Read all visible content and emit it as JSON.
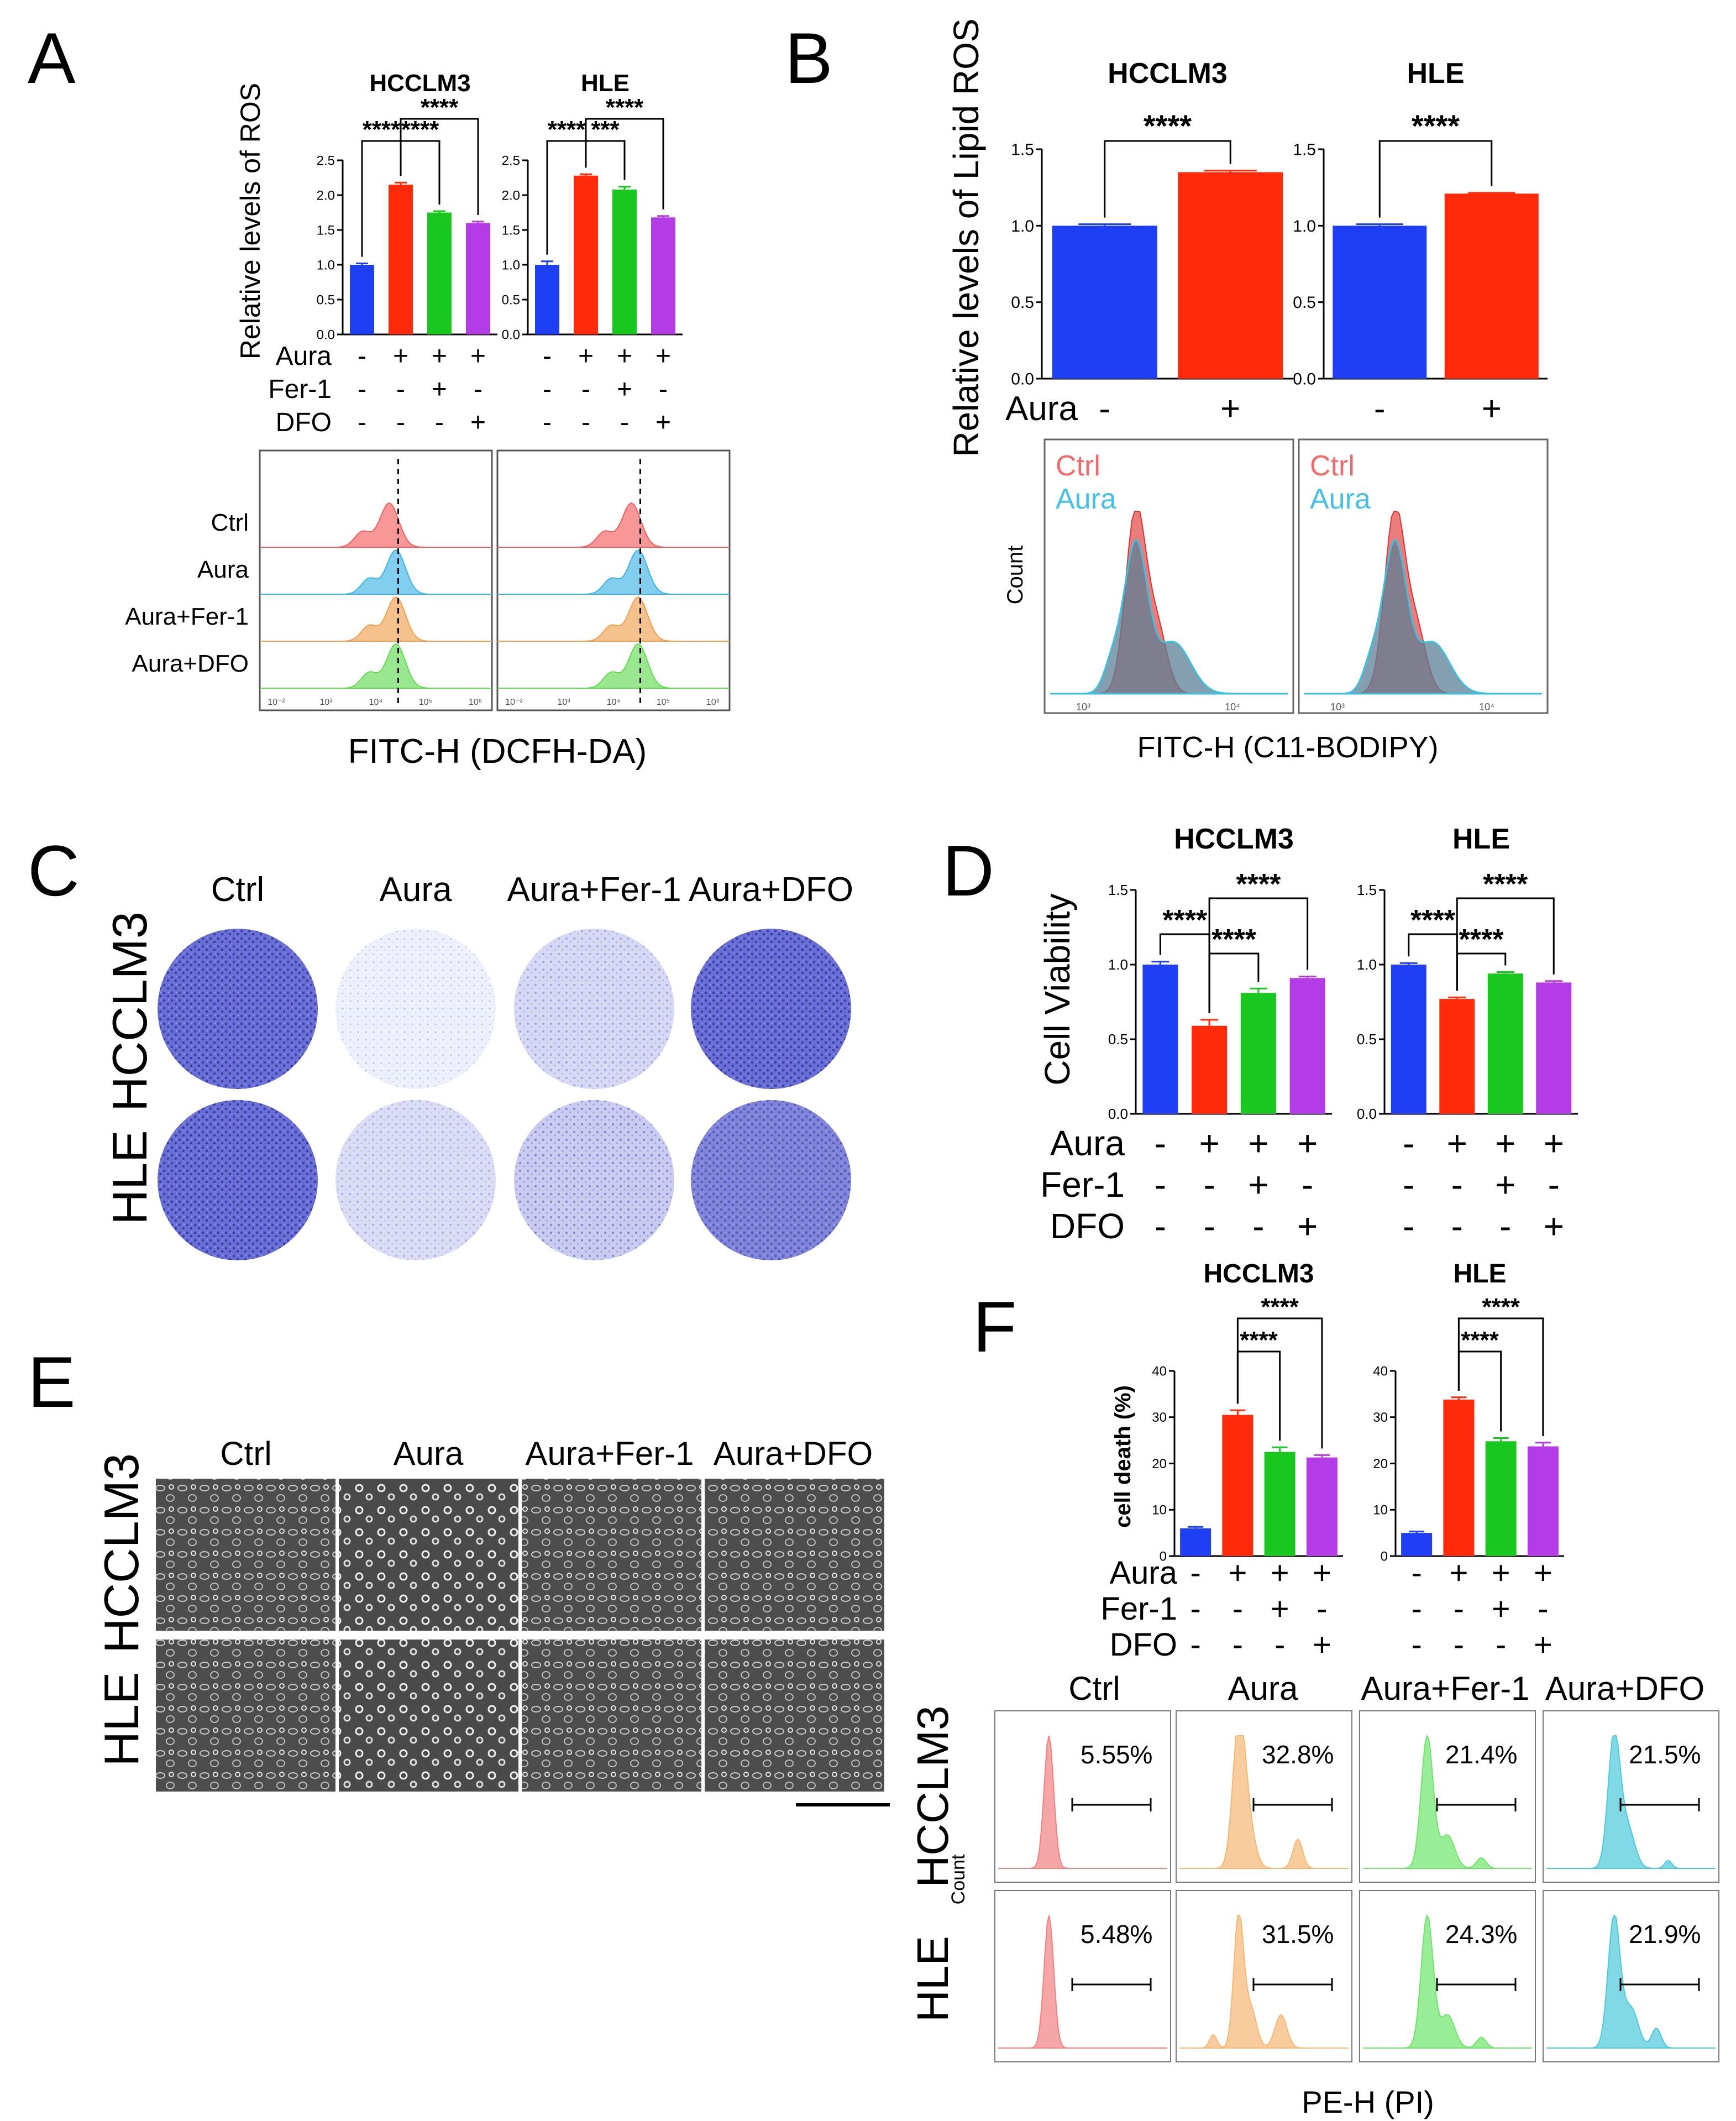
{
  "colors": {
    "ctrl": "#1f3ff5",
    "aura": "#ff2a0a",
    "fer1": "#19c81e",
    "dfo": "#b43ce6",
    "hist_ctrl": "#f25f5f",
    "hist_aura": "#3fb4e6",
    "hist_fer1": "#f0a050",
    "hist_dfo": "#63dc53",
    "hist_cyan": "#33c3d8",
    "dish": "#4a4fbf",
    "brightfield": "#5a5a5a"
  },
  "panels": {
    "A": "A",
    "B": "B",
    "C": "C",
    "D": "D",
    "E": "E",
    "F": "F"
  },
  "conditions": {
    "ctrl": "Ctrl",
    "aura": "Aura",
    "fer1": "Aura+Fer-1",
    "dfo": "Aura+DFO"
  },
  "treat_labels": {
    "aura": "Aura",
    "fer1": "Fer-1",
    "dfo": "DFO"
  },
  "signs4": {
    "aura": [
      "-",
      "+",
      "+",
      "+"
    ],
    "fer1": [
      "-",
      "-",
      "+",
      "-"
    ],
    "dfo": [
      "-",
      "-",
      "-",
      "+"
    ]
  },
  "signs2": {
    "aura": [
      "-",
      "+"
    ]
  },
  "cell_lines": {
    "hcclm3": "HCCLM3",
    "hle": "HLE"
  },
  "stars": "****",
  "chart_data": [
    {
      "id": "A-HCCLM3",
      "type": "bar",
      "title": "HCCLM3",
      "ylabel": "Relative levels of ROS",
      "ylim": [
        0,
        2.5
      ],
      "yticks": [
        "0.0",
        "0.5",
        "1.0",
        "1.5",
        "2.0",
        "2.5"
      ],
      "categories": [
        "Ctrl",
        "Aura",
        "Aura+Fer-1",
        "Aura+DFO"
      ],
      "values": [
        1.0,
        2.15,
        1.75,
        1.6
      ],
      "errors": [
        0.02,
        0.03,
        0.02,
        0.02
      ],
      "annotations": [
        "****",
        "****",
        "****"
      ]
    },
    {
      "id": "A-HLE",
      "type": "bar",
      "title": "HLE",
      "ylabel": "",
      "ylim": [
        0,
        2.5
      ],
      "yticks": [
        "0.0",
        "0.5",
        "1.0",
        "1.5",
        "2.0",
        "2.5"
      ],
      "categories": [
        "Ctrl",
        "Aura",
        "Aura+Fer-1",
        "Aura+DFO"
      ],
      "values": [
        1.0,
        2.28,
        2.08,
        1.68
      ],
      "errors": [
        0.05,
        0.02,
        0.04,
        0.02
      ],
      "annotations": [
        "****",
        "***",
        "****"
      ]
    },
    {
      "id": "B-HCCLM3",
      "type": "bar",
      "title": "HCCLM3",
      "ylabel": "Relative levels of Lipid ROS",
      "ylim": [
        0,
        1.5
      ],
      "yticks": [
        "0.0",
        "0.5",
        "1.0",
        "1.5"
      ],
      "categories": [
        "Ctrl",
        "Aura"
      ],
      "values": [
        1.0,
        1.35
      ],
      "errors": [
        0.01,
        0.01
      ],
      "annotations": [
        "****"
      ]
    },
    {
      "id": "B-HLE",
      "type": "bar",
      "title": "HLE",
      "ylabel": "",
      "ylim": [
        0,
        1.5
      ],
      "yticks": [
        "0.0",
        "0.5",
        "1.0",
        "1.5"
      ],
      "categories": [
        "Ctrl",
        "Aura"
      ],
      "values": [
        1.0,
        1.21
      ],
      "errors": [
        0.01,
        0.005
      ],
      "annotations": [
        "****"
      ]
    },
    {
      "id": "D-HCCLM3",
      "type": "bar",
      "title": "HCCLM3",
      "ylabel": "Cell Viability",
      "ylim": [
        0,
        1.5
      ],
      "yticks": [
        "0.0",
        "0.5",
        "1.0",
        "1.5"
      ],
      "categories": [
        "Ctrl",
        "Aura",
        "Aura+Fer-1",
        "Aura+DFO"
      ],
      "values": [
        1.0,
        0.59,
        0.81,
        0.91
      ],
      "errors": [
        0.02,
        0.04,
        0.03,
        0.01
      ],
      "annotations": [
        "****",
        "****",
        "****"
      ]
    },
    {
      "id": "D-HLE",
      "type": "bar",
      "title": "HLE",
      "ylabel": "",
      "ylim": [
        0,
        1.5
      ],
      "yticks": [
        "0.0",
        "0.5",
        "1.0",
        "1.5"
      ],
      "categories": [
        "Ctrl",
        "Aura",
        "Aura+Fer-1",
        "Aura+DFO"
      ],
      "values": [
        1.0,
        0.77,
        0.94,
        0.88
      ],
      "errors": [
        0.01,
        0.01,
        0.01,
        0.01
      ],
      "annotations": [
        "****",
        "****",
        "****"
      ]
    },
    {
      "id": "F-HCCLM3",
      "type": "bar",
      "title": "HCCLM3",
      "ylabel": "cell death (%)",
      "ylim": [
        0,
        40
      ],
      "yticks": [
        "0",
        "10",
        "20",
        "30",
        "40"
      ],
      "categories": [
        "Ctrl",
        "Aura",
        "Aura+Fer-1",
        "Aura+DFO"
      ],
      "values": [
        6.0,
        30.5,
        22.5,
        21.3
      ],
      "errors": [
        0.3,
        1.0,
        1.0,
        0.5
      ],
      "annotations": [
        "****",
        "****"
      ]
    },
    {
      "id": "F-HLE",
      "type": "bar",
      "title": "HLE",
      "ylabel": "",
      "ylim": [
        0,
        40
      ],
      "yticks": [
        "0",
        "10",
        "20",
        "30",
        "40"
      ],
      "categories": [
        "Ctrl",
        "Aura",
        "Aura+Fer-1",
        "Aura+DFO"
      ],
      "values": [
        5.0,
        33.8,
        24.8,
        23.7
      ],
      "errors": [
        0.3,
        0.5,
        0.7,
        0.8
      ],
      "annotations": [
        "****",
        "****"
      ]
    }
  ],
  "flow": {
    "a_xlabel": "FITC-H (DCFH-DA)",
    "b_xlabel": "FITC-H (C11-BODIPY)",
    "b_ylabel": "Count",
    "b_legend": [
      "Ctrl",
      "Aura"
    ],
    "a_ticks": [
      "10⁻²",
      "10³",
      "10⁴",
      "10⁵",
      "10⁶"
    ],
    "b_ticks": [
      "10³",
      "10⁴"
    ],
    "f_xlabel": "PE-H (PI)",
    "f_ylabel": "Count",
    "f_pct": {
      "hcclm3": [
        "5.55%",
        "32.8%",
        "21.4%",
        "21.5%"
      ],
      "hle": [
        "5.48%",
        "31.5%",
        "24.3%",
        "21.9%"
      ]
    }
  }
}
